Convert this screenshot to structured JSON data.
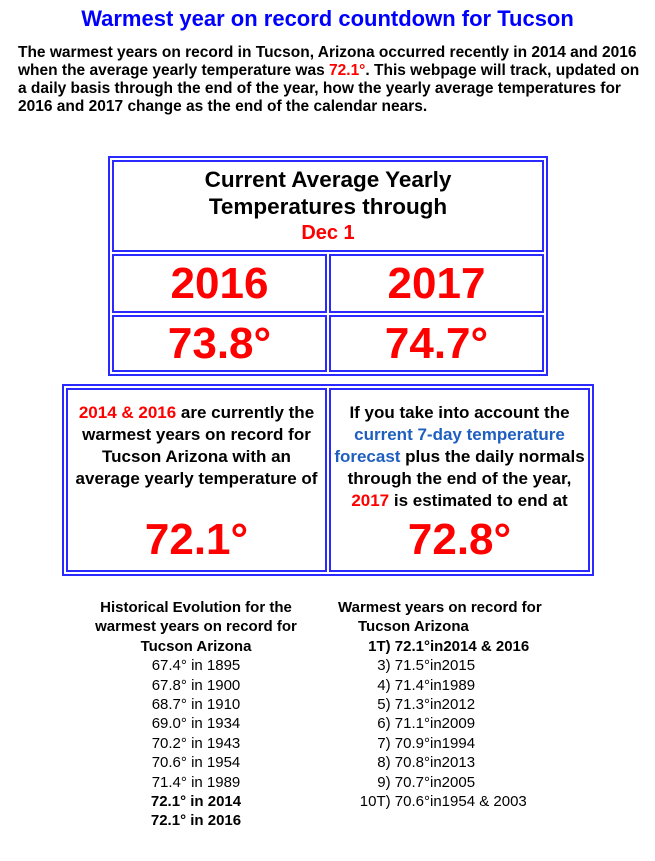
{
  "title": "Warmest year on record countdown for Tucson",
  "intro": {
    "before": "The warmest years on record in Tucson, Arizona occurred recently in 2014 and 2016 when the average yearly temperature was ",
    "highlight": "72.1°",
    "after": ". This webpage will track, updated on a daily basis through the end of the year, how the yearly average temperatures for 2016 and 2017 change as the end of the calendar nears."
  },
  "current": {
    "heading_line1": "Current Average Yearly",
    "heading_line2": "Temperatures through",
    "date": "Dec 1",
    "years": [
      "2016",
      "2017"
    ],
    "temps": [
      "73.8°",
      "74.7°"
    ]
  },
  "records_box": {
    "left_years": "2014 & 2016",
    "left_text": " are currently the warmest years on record for Tucson Arizona with an average yearly temperature of",
    "left_value": "72.1°",
    "right_text1": "If you take into account the ",
    "right_link": "current 7-day temperature forecast",
    "right_text2": " plus the daily normals through the end of the year, ",
    "right_year": "2017",
    "right_text3": " is estimated to end at",
    "right_value": "72.8°"
  },
  "historical": {
    "heading_line1": "Historical Evolution for the",
    "heading_line2": "warmest years on record for",
    "heading_line3": "Tucson Arizona",
    "rows": [
      "67.4° in 1895",
      "67.8° in 1900",
      "68.7° in 1910",
      "69.0° in 1934",
      "70.2° in 1943",
      "70.6° in 1954",
      "71.4° in 1989",
      "72.1° in 2014",
      "72.1° in 2016"
    ]
  },
  "warmest": {
    "heading_line1": "Warmest years on record for",
    "heading_line2": "Tucson Arizona",
    "rows": [
      {
        "rank": "1T) 72.1°",
        "year": "in2014 & 2016"
      },
      {
        "rank": "3) 71.5°",
        "year": "in2015"
      },
      {
        "rank": "4) 71.4°",
        "year": "in1989"
      },
      {
        "rank": "5) 71.3°",
        "year": "in2012"
      },
      {
        "rank": "6) 71.1°",
        "year": "in2009"
      },
      {
        "rank": "7) 70.9°",
        "year": "in1994"
      },
      {
        "rank": "8) 70.8°",
        "year": "in2013"
      },
      {
        "rank": "9) 70.7°",
        "year": "in2005"
      },
      {
        "rank": "10T) 70.6°",
        "year": "in1954 & 2003"
      }
    ]
  }
}
